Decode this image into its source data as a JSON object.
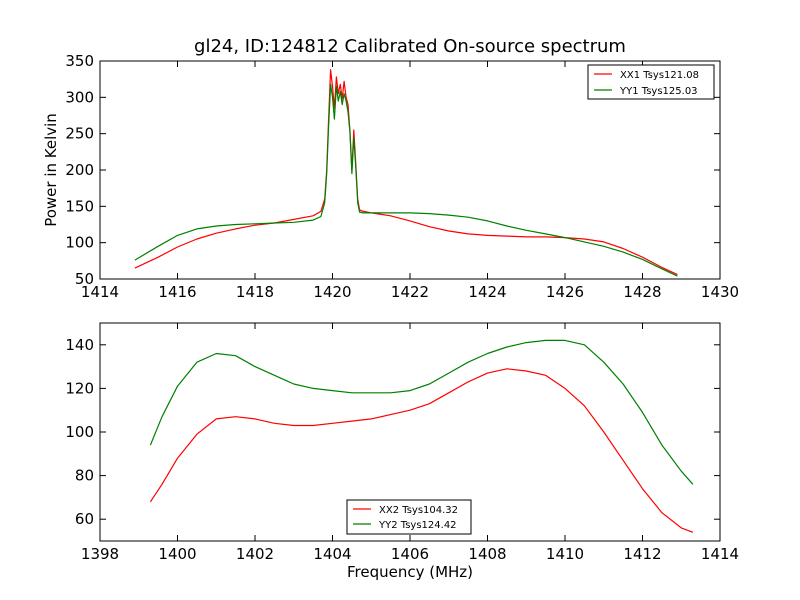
{
  "figure": {
    "title": "gl24, ID:124812 Calibrated On-source spectrum"
  },
  "chart_data": [
    {
      "type": "line",
      "title": "gl24, ID:124812 Calibrated On-source spectrum",
      "xlabel": "",
      "ylabel": "Power in Kelvin",
      "xlim": [
        1414,
        1430
      ],
      "ylim": [
        50,
        350
      ],
      "xticks": [
        1414,
        1416,
        1418,
        1420,
        1422,
        1424,
        1426,
        1428,
        1430
      ],
      "yticks": [
        50,
        100,
        150,
        200,
        250,
        300,
        350
      ],
      "grid": false,
      "legend_position": "top-right",
      "series": [
        {
          "name": "XX1 Tsys121.08",
          "color": "#ff0000",
          "x": [
            1414.9,
            1415.5,
            1416,
            1416.5,
            1417,
            1417.5,
            1418,
            1418.5,
            1419,
            1419.5,
            1419.7,
            1419.8,
            1419.85,
            1419.9,
            1419.95,
            1420.0,
            1420.05,
            1420.1,
            1420.15,
            1420.2,
            1420.25,
            1420.3,
            1420.35,
            1420.4,
            1420.45,
            1420.5,
            1420.55,
            1420.6,
            1420.65,
            1420.7,
            1420.8,
            1421,
            1421.5,
            1422,
            1422.5,
            1423,
            1423.5,
            1424,
            1424.5,
            1425,
            1425.5,
            1426,
            1426.5,
            1427,
            1427.5,
            1428,
            1428.5,
            1428.9
          ],
          "values": [
            65,
            80,
            94,
            105,
            113,
            119,
            124,
            127,
            132,
            137,
            143,
            160,
            200,
            270,
            338,
            315,
            285,
            328,
            305,
            318,
            298,
            322,
            300,
            290,
            255,
            200,
            255,
            210,
            160,
            145,
            143,
            141,
            137,
            130,
            122,
            116,
            112,
            110,
            109,
            108,
            108,
            107,
            105,
            101,
            92,
            80,
            66,
            56
          ]
        },
        {
          "name": "YY1 Tsys125.03",
          "color": "#008000",
          "x": [
            1414.9,
            1415.5,
            1416,
            1416.5,
            1417,
            1417.5,
            1418,
            1418.5,
            1419,
            1419.5,
            1419.7,
            1419.8,
            1419.85,
            1419.9,
            1419.95,
            1420.0,
            1420.05,
            1420.1,
            1420.15,
            1420.2,
            1420.25,
            1420.3,
            1420.35,
            1420.4,
            1420.45,
            1420.5,
            1420.55,
            1420.6,
            1420.65,
            1420.7,
            1420.8,
            1421,
            1421.5,
            1422,
            1422.5,
            1423,
            1423.5,
            1424,
            1424.5,
            1425,
            1425.5,
            1426,
            1426.5,
            1427,
            1427.5,
            1428,
            1428.5,
            1428.9
          ],
          "values": [
            76,
            95,
            110,
            119,
            123,
            125,
            126,
            127,
            128,
            131,
            136,
            155,
            195,
            260,
            318,
            300,
            270,
            315,
            295,
            308,
            290,
            305,
            295,
            280,
            253,
            195,
            245,
            205,
            155,
            142,
            141,
            141,
            141,
            141,
            140,
            138,
            135,
            130,
            123,
            117,
            112,
            107,
            101,
            95,
            87,
            77,
            64,
            54
          ]
        }
      ]
    },
    {
      "type": "line",
      "title": "",
      "xlabel": "Frequency (MHz)",
      "ylabel": "",
      "xlim": [
        1398,
        1414
      ],
      "ylim": [
        50,
        150
      ],
      "xticks": [
        1398,
        1400,
        1402,
        1404,
        1406,
        1408,
        1410,
        1412,
        1414
      ],
      "yticks": [
        60,
        80,
        100,
        120,
        140
      ],
      "grid": false,
      "legend_position": "lower-center",
      "series": [
        {
          "name": "XX2 Tsys104.32",
          "color": "#ff0000",
          "x": [
            1399.3,
            1399.6,
            1400,
            1400.5,
            1401,
            1401.5,
            1402,
            1402.5,
            1403,
            1403.5,
            1404,
            1404.5,
            1405,
            1405.5,
            1406,
            1406.5,
            1407,
            1407.5,
            1408,
            1408.5,
            1409,
            1409.5,
            1410,
            1410.5,
            1411,
            1411.5,
            1412,
            1412.5,
            1413,
            1413.3
          ],
          "values": [
            68,
            76,
            88,
            99,
            106,
            107,
            106,
            104,
            103,
            103,
            104,
            105,
            106,
            108,
            110,
            113,
            118,
            123,
            127,
            129,
            128,
            126,
            120,
            112,
            100,
            87,
            74,
            63,
            56,
            54
          ]
        },
        {
          "name": "YY2 Tsys124.42",
          "color": "#008000",
          "x": [
            1399.3,
            1399.6,
            1400,
            1400.5,
            1401,
            1401.5,
            1402,
            1402.5,
            1403,
            1403.5,
            1404,
            1404.5,
            1405,
            1405.5,
            1406,
            1406.5,
            1407,
            1407.5,
            1408,
            1408.5,
            1409,
            1409.5,
            1410,
            1410.5,
            1411,
            1411.5,
            1412,
            1412.5,
            1413,
            1413.3
          ],
          "values": [
            94,
            107,
            121,
            132,
            136,
            135,
            130,
            126,
            122,
            120,
            119,
            118,
            118,
            118,
            119,
            122,
            127,
            132,
            136,
            139,
            141,
            142,
            142,
            140,
            132,
            122,
            109,
            94,
            82,
            76
          ]
        }
      ]
    }
  ]
}
